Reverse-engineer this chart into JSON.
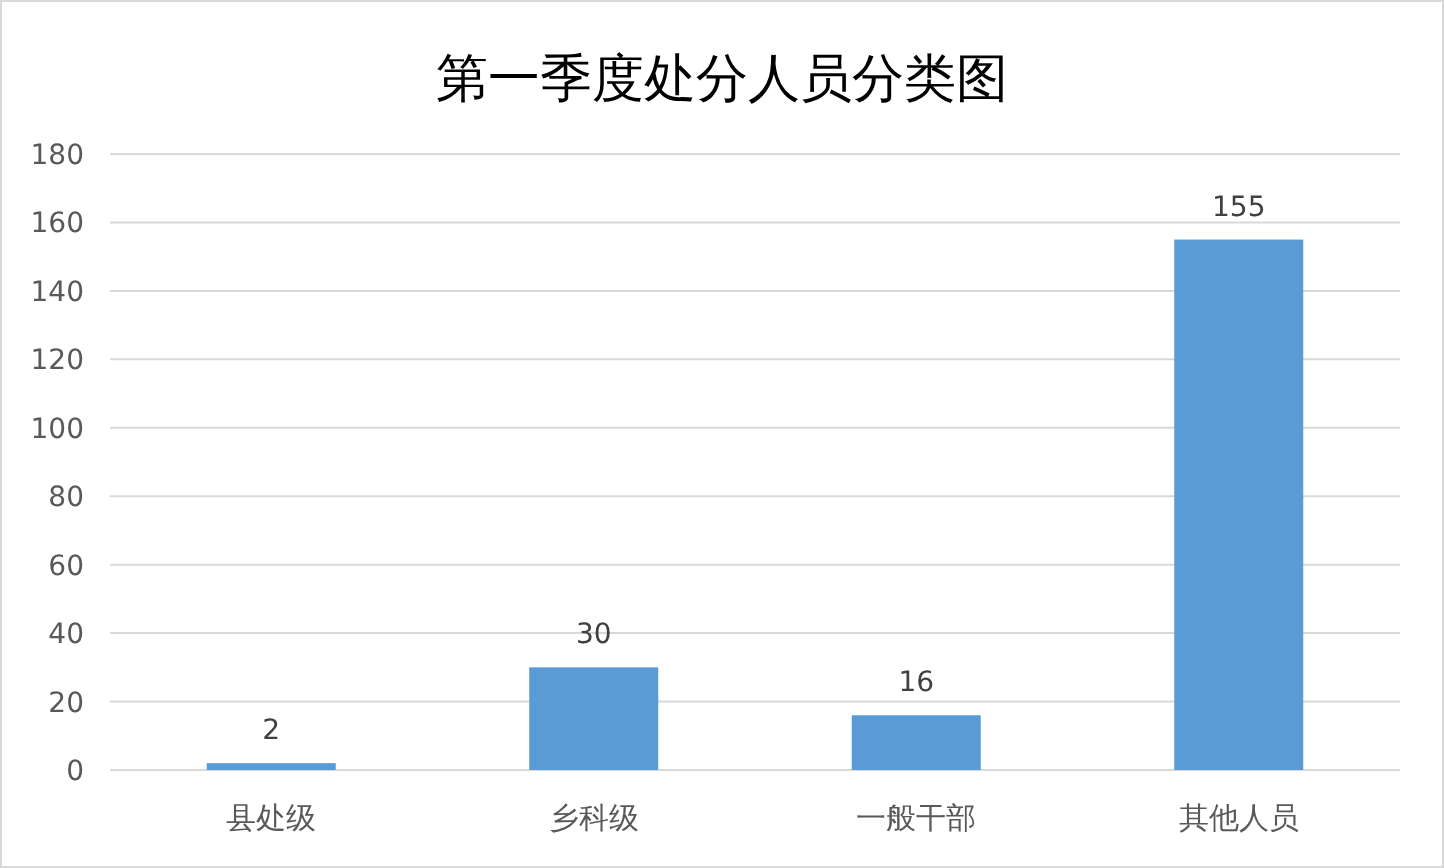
{
  "chart_data": {
    "type": "bar",
    "title": "第一季度处分人员分类图",
    "categories": [
      "县处级",
      "乡科级",
      "一般干部",
      "其他人员"
    ],
    "values": [
      2,
      30,
      16,
      155
    ],
    "color": "#5b9bd5",
    "ylim": [
      0,
      180
    ],
    "yticks": [
      0,
      20,
      40,
      60,
      80,
      100,
      120,
      140,
      160,
      180
    ],
    "grid": "y",
    "data_labels": true
  }
}
